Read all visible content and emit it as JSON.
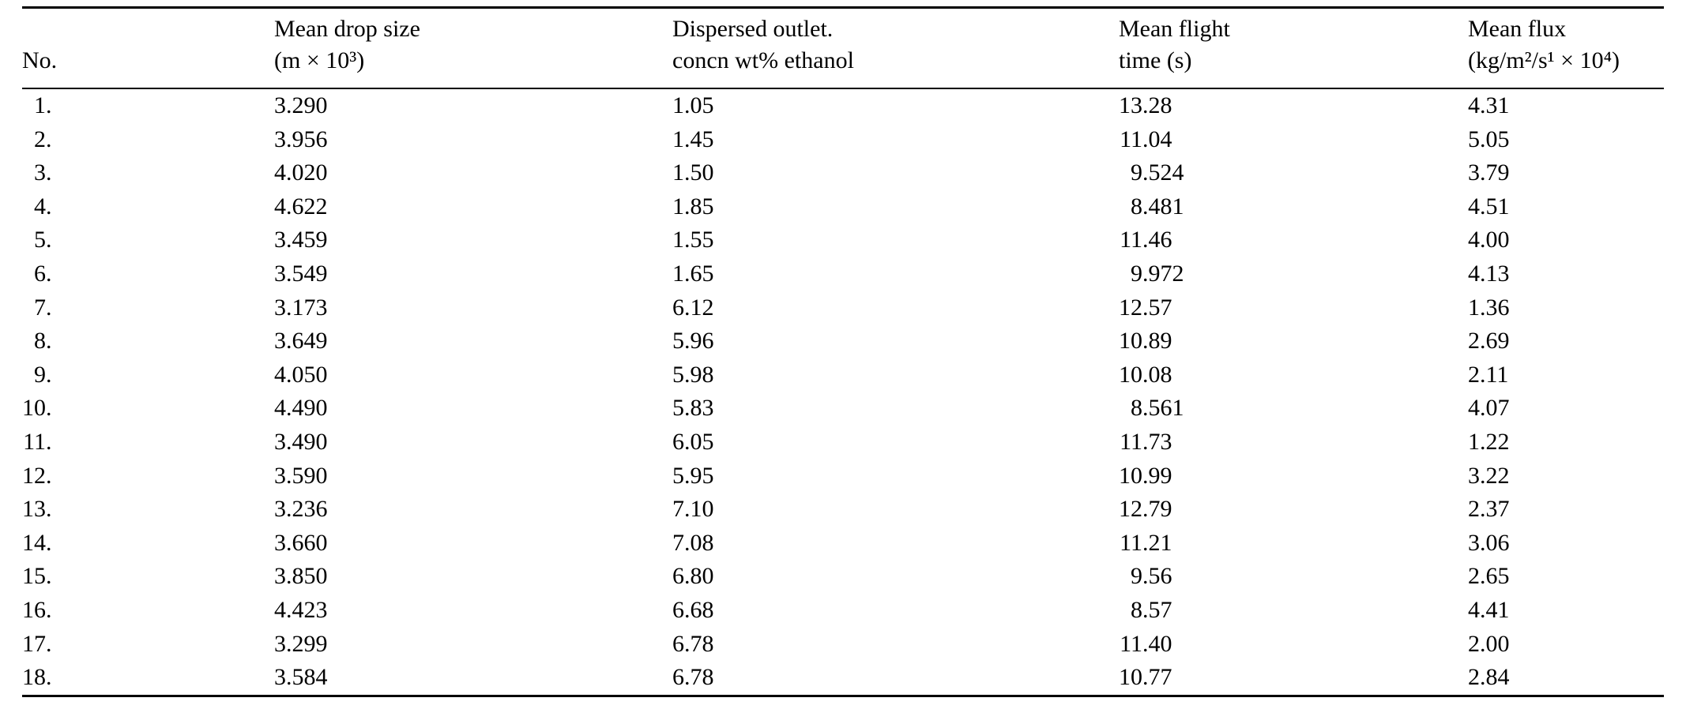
{
  "table": {
    "columns": [
      {
        "line1": "",
        "line2": "No."
      },
      {
        "line1": "Mean drop size",
        "line2": "(m × 10³)"
      },
      {
        "line1": "Dispersed outlet.",
        "line2": "concn wt% ethanol"
      },
      {
        "line1": "Mean flight",
        "line2": "time (s)"
      },
      {
        "line1": "Mean flux",
        "line2": "(kg/m²/s¹ × 10⁴)"
      }
    ],
    "row_keys": [
      "no",
      "drop_size",
      "concn",
      "flight_time",
      "flux"
    ],
    "rows": [
      {
        "no": "1.",
        "drop_size": "3.290",
        "concn": "1.05",
        "flight_time": "13.28",
        "flux": "4.31"
      },
      {
        "no": "2.",
        "drop_size": "3.956",
        "concn": "1.45",
        "flight_time": "11.04",
        "flux": "5.05"
      },
      {
        "no": "3.",
        "drop_size": "4.020",
        "concn": "1.50",
        "flight_time": "9.524",
        "flux": "3.79"
      },
      {
        "no": "4.",
        "drop_size": "4.622",
        "concn": "1.85",
        "flight_time": "8.481",
        "flux": "4.51"
      },
      {
        "no": "5.",
        "drop_size": "3.459",
        "concn": "1.55",
        "flight_time": "11.46",
        "flux": "4.00"
      },
      {
        "no": "6.",
        "drop_size": "3.549",
        "concn": "1.65",
        "flight_time": "9.972",
        "flux": "4.13"
      },
      {
        "no": "7.",
        "drop_size": "3.173",
        "concn": "6.12",
        "flight_time": "12.57",
        "flux": "1.36"
      },
      {
        "no": "8.",
        "drop_size": "3.649",
        "concn": "5.96",
        "flight_time": "10.89",
        "flux": "2.69"
      },
      {
        "no": "9.",
        "drop_size": "4.050",
        "concn": "5.98",
        "flight_time": "10.08",
        "flux": "2.11"
      },
      {
        "no": "10.",
        "drop_size": "4.490",
        "concn": "5.83",
        "flight_time": "8.561",
        "flux": "4.07"
      },
      {
        "no": "11.",
        "drop_size": "3.490",
        "concn": "6.05",
        "flight_time": "11.73",
        "flux": "1.22"
      },
      {
        "no": "12.",
        "drop_size": "3.590",
        "concn": "5.95",
        "flight_time": "10.99",
        "flux": "3.22"
      },
      {
        "no": "13.",
        "drop_size": "3.236",
        "concn": "7.10",
        "flight_time": "12.79",
        "flux": "2.37"
      },
      {
        "no": "14.",
        "drop_size": "3.660",
        "concn": "7.08",
        "flight_time": "11.21",
        "flux": "3.06"
      },
      {
        "no": "15.",
        "drop_size": "3.850",
        "concn": "6.80",
        "flight_time": "9.56",
        "flux": "2.65"
      },
      {
        "no": "16.",
        "drop_size": "4.423",
        "concn": "6.68",
        "flight_time": "8.57",
        "flux": "4.41"
      },
      {
        "no": "17.",
        "drop_size": "3.299",
        "concn": "6.78",
        "flight_time": "11.40",
        "flux": "2.00"
      },
      {
        "no": "18.",
        "drop_size": "3.584",
        "concn": "6.78",
        "flight_time": "10.77",
        "flux": "2.84"
      }
    ]
  }
}
